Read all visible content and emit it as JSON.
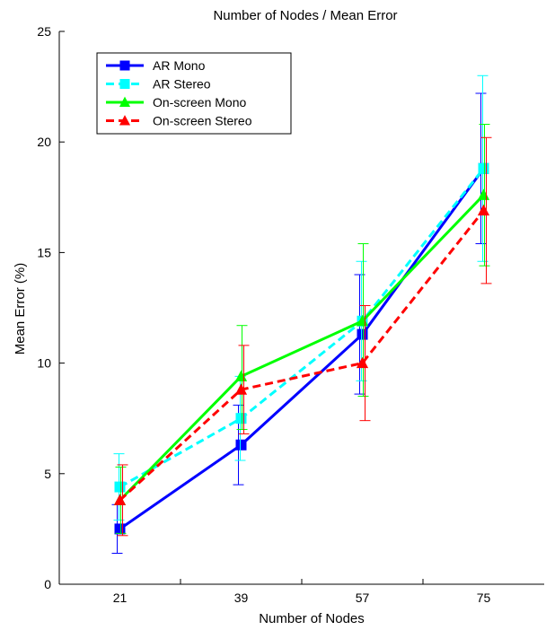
{
  "chart_data": {
    "type": "line",
    "title": "Number of Nodes / Mean Error",
    "xlabel": "Number of Nodes",
    "ylabel": "Mean Error (%)",
    "categories": [
      "21",
      "39",
      "57",
      "75"
    ],
    "ylim": [
      0,
      25
    ],
    "yticks": [
      0,
      5,
      10,
      15,
      20,
      25
    ],
    "grid": false,
    "legend_position": "top-left",
    "series": [
      {
        "name": "AR Mono",
        "color": "#0000ff",
        "dash": "solid",
        "marker": "square",
        "values": [
          2.5,
          6.3,
          11.3,
          18.8
        ],
        "err_low": [
          1.4,
          4.5,
          8.6,
          15.4
        ],
        "err_high": [
          3.6,
          8.1,
          14.0,
          22.2
        ]
      },
      {
        "name": "AR Stereo",
        "color": "#00ffff",
        "dash": "dashed",
        "marker": "square",
        "values": [
          4.4,
          7.5,
          11.9,
          18.8
        ],
        "err_low": [
          2.9,
          5.6,
          9.2,
          14.6
        ],
        "err_high": [
          5.9,
          9.4,
          14.6,
          23.0
        ]
      },
      {
        "name": "On-screen Mono",
        "color": "#00ff00",
        "dash": "solid",
        "marker": "triangle",
        "values": [
          3.8,
          9.4,
          11.9,
          17.6
        ],
        "err_low": [
          2.3,
          7.0,
          8.5,
          14.4
        ],
        "err_high": [
          5.3,
          11.7,
          15.4,
          20.8
        ]
      },
      {
        "name": "On-screen Stereo",
        "color": "#ff0000",
        "dash": "dashed",
        "marker": "triangle",
        "values": [
          3.8,
          8.8,
          10.0,
          16.9
        ],
        "err_low": [
          2.2,
          6.8,
          7.4,
          13.6
        ],
        "err_high": [
          5.4,
          10.8,
          12.6,
          20.2
        ]
      }
    ]
  }
}
